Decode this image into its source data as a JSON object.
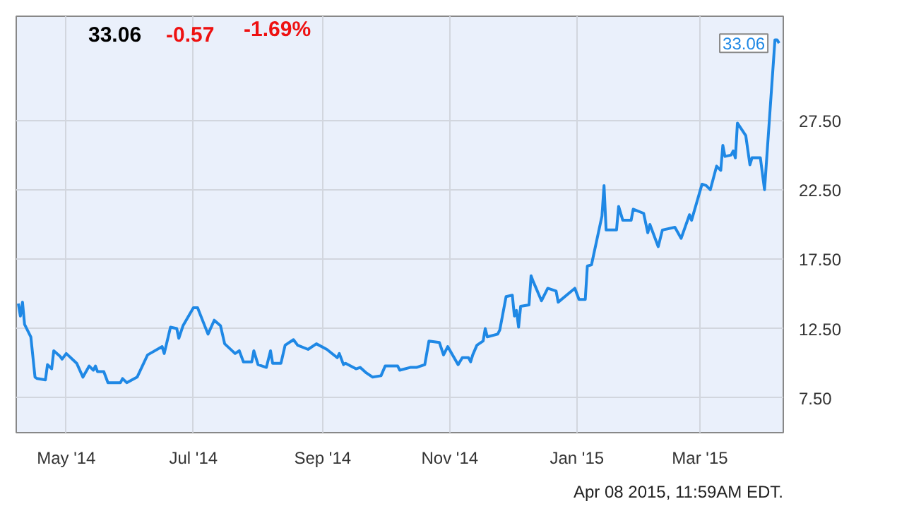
{
  "chart_data": {
    "type": "line",
    "x": [
      "2014-04-08",
      "2014-04-09",
      "2014-04-10",
      "2014-04-11",
      "2014-04-14",
      "2014-04-16",
      "2014-04-17",
      "2014-04-21",
      "2014-04-22",
      "2014-04-24",
      "2014-04-25",
      "2014-04-28",
      "2014-04-29",
      "2014-05-01",
      "2014-05-06",
      "2014-05-09",
      "2014-05-12",
      "2014-05-14",
      "2014-05-15",
      "2014-05-16",
      "2014-05-19",
      "2014-05-21",
      "2014-05-27",
      "2014-05-28",
      "2014-05-30",
      "2014-06-04",
      "2014-06-09",
      "2014-06-16",
      "2014-06-17",
      "2014-06-20",
      "2014-06-23",
      "2014-06-24",
      "2014-06-26",
      "2014-07-01",
      "2014-07-03",
      "2014-07-08",
      "2014-07-11",
      "2014-07-14",
      "2014-07-16",
      "2014-07-21",
      "2014-07-23",
      "2014-07-25",
      "2014-07-29",
      "2014-07-30",
      "2014-08-01",
      "2014-08-05",
      "2014-08-07",
      "2014-08-08",
      "2014-08-12",
      "2014-08-14",
      "2014-08-18",
      "2014-08-20",
      "2014-08-25",
      "2014-08-29",
      "2014-09-03",
      "2014-09-08",
      "2014-09-09",
      "2014-09-11",
      "2014-09-12",
      "2014-09-17",
      "2014-09-19",
      "2014-09-22",
      "2014-09-25",
      "2014-09-29",
      "2014-10-01",
      "2014-10-07",
      "2014-10-08",
      "2014-10-13",
      "2014-10-16",
      "2014-10-20",
      "2014-10-22",
      "2014-10-27",
      "2014-10-29",
      "2014-10-31",
      "2014-11-05",
      "2014-11-07",
      "2014-11-10",
      "2014-11-11",
      "2014-11-12",
      "2014-11-14",
      "2014-11-17",
      "2014-11-18",
      "2014-11-19",
      "2014-11-24",
      "2014-11-25",
      "2014-11-28",
      "2014-12-01",
      "2014-12-02",
      "2014-12-03",
      "2014-12-04",
      "2014-12-05",
      "2014-12-09",
      "2014-12-10",
      "2014-12-11",
      "2014-12-15",
      "2014-12-18",
      "2014-12-22",
      "2014-12-23",
      "2014-12-31",
      "2015-01-02",
      "2015-01-05",
      "2015-01-06",
      "2015-01-08",
      "2015-01-13",
      "2015-01-14",
      "2015-01-15",
      "2015-01-20",
      "2015-01-21",
      "2015-01-23",
      "2015-01-27",
      "2015-01-28",
      "2015-02-02",
      "2015-02-04",
      "2015-02-05",
      "2015-02-09",
      "2015-02-11",
      "2015-02-17",
      "2015-02-20",
      "2015-02-24",
      "2015-02-25",
      "2015-03-02",
      "2015-03-04",
      "2015-03-06",
      "2015-03-09",
      "2015-03-11",
      "2015-03-12",
      "2015-03-13",
      "2015-03-16",
      "2015-03-17",
      "2015-03-18",
      "2015-03-19",
      "2015-03-23",
      "2015-03-25",
      "2015-03-26",
      "2015-03-30",
      "2015-04-01",
      "2015-04-06",
      "2015-04-07",
      "2015-04-08"
    ],
    "series": [
      {
        "color": "#1f88e5",
        "values": [
          14.3,
          13.4,
          14.4,
          12.8,
          11.9,
          9.0,
          8.9,
          8.8,
          9.9,
          9.6,
          10.9,
          10.5,
          10.3,
          10.7,
          10.0,
          9.0,
          9.8,
          9.5,
          9.8,
          9.4,
          9.4,
          8.6,
          8.6,
          8.9,
          8.6,
          9.0,
          10.6,
          11.2,
          10.7,
          12.6,
          12.5,
          11.8,
          12.7,
          14.0,
          14.0,
          12.1,
          13.1,
          12.7,
          11.4,
          10.7,
          10.9,
          10.1,
          10.1,
          10.9,
          9.9,
          9.7,
          10.9,
          10.0,
          10.0,
          11.3,
          11.7,
          11.3,
          11.0,
          11.4,
          11.0,
          10.4,
          10.7,
          9.9,
          10.0,
          9.6,
          9.7,
          9.3,
          9.0,
          9.1,
          9.8,
          9.8,
          9.5,
          9.7,
          9.7,
          9.9,
          11.6,
          11.5,
          10.6,
          11.2,
          9.9,
          10.4,
          10.4,
          10.1,
          10.6,
          11.3,
          11.6,
          12.5,
          11.9,
          12.1,
          12.4,
          14.8,
          14.9,
          13.4,
          13.8,
          12.6,
          14.1,
          14.2,
          16.3,
          15.9,
          14.5,
          15.4,
          15.2,
          14.4,
          15.4,
          14.6,
          14.6,
          17.0,
          17.1,
          20.6,
          22.8,
          19.6,
          19.6,
          21.3,
          20.3,
          20.3,
          21.1,
          20.8,
          19.4,
          20.0,
          18.4,
          19.6,
          19.8,
          19.0,
          20.7,
          20.3,
          22.9,
          22.8,
          22.5,
          24.2,
          23.9,
          25.7,
          24.9,
          25.0,
          25.3,
          24.8,
          27.3,
          26.4,
          24.3,
          24.8,
          24.8,
          22.5,
          33.3,
          33.3,
          33.06
        ]
      }
    ],
    "xlim": [
      "2014-04-07",
      "2015-04-10"
    ],
    "xticks": [
      {
        "value": "2014-05-01",
        "label": "May '14"
      },
      {
        "value": "2014-07-01",
        "label": "Jul '14"
      },
      {
        "value": "2014-09-01",
        "label": "Sep '14"
      },
      {
        "value": "2014-11-01",
        "label": "Nov '14"
      },
      {
        "value": "2015-01-01",
        "label": "Jan '15"
      },
      {
        "value": "2015-03-01",
        "label": "Mar '15"
      }
    ],
    "ylim": [
      5.0,
      35.0
    ],
    "yticks": [
      {
        "value": 7.5,
        "label": "7.50"
      },
      {
        "value": 12.5,
        "label": "12.50"
      },
      {
        "value": 17.5,
        "label": "17.50"
      },
      {
        "value": 22.5,
        "label": "22.50"
      },
      {
        "value": 27.5,
        "label": "27.50"
      }
    ],
    "grid": true,
    "annotations": [
      "33.06",
      "-0.57",
      "-1.69%",
      "Apr 08 2015, 11:59AM EDT.",
      {
        "text": "33.06",
        "x": "2015-04-08",
        "y": 33.06
      }
    ]
  }
}
